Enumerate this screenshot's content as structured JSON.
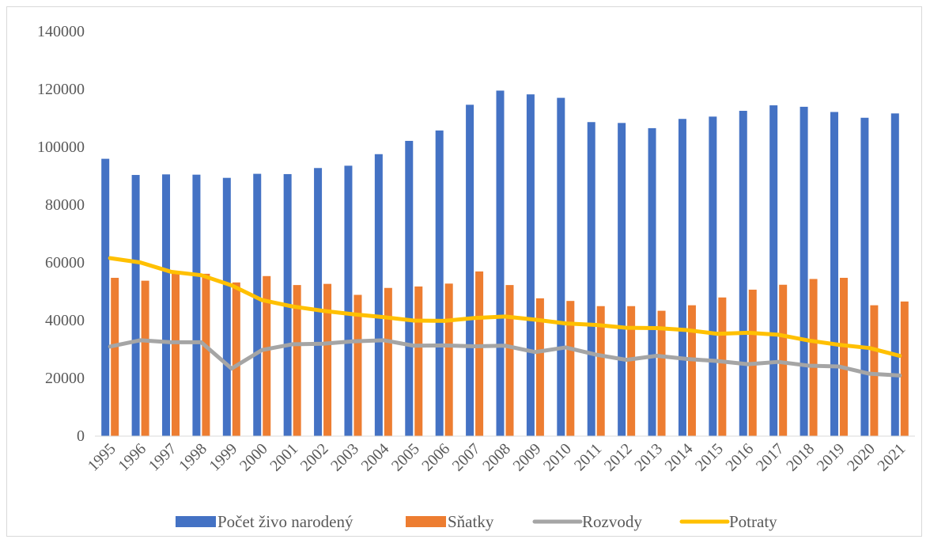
{
  "chart_data": {
    "type": "bar",
    "title": "",
    "xlabel": "",
    "ylabel": "",
    "ylim": [
      0,
      140000
    ],
    "yticks": [
      0,
      20000,
      40000,
      60000,
      80000,
      100000,
      120000,
      140000
    ],
    "grid": false,
    "legend_position": "bottom",
    "categories": [
      "1995",
      "1996",
      "1997",
      "1998",
      "1999",
      "2000",
      "2001",
      "2002",
      "2003",
      "2004",
      "2005",
      "2006",
      "2007",
      "2008",
      "2009",
      "2010",
      "2011",
      "2012",
      "2013",
      "2014",
      "2015",
      "2016",
      "2017",
      "2018",
      "2019",
      "2020",
      "2021"
    ],
    "series": [
      {
        "name": "Počet živo narodený",
        "type": "bar",
        "color": "#4472C4",
        "values": [
          96000,
          90400,
          90600,
          90500,
          89400,
          90800,
          90700,
          92800,
          93600,
          97600,
          102200,
          105800,
          114700,
          119600,
          118300,
          117100,
          108700,
          108400,
          106600,
          109800,
          110600,
          112600,
          114500,
          114000,
          112200,
          110200,
          111700
        ]
      },
      {
        "name": "Sňatky",
        "type": "bar",
        "color": "#ED7D31",
        "values": [
          54800,
          53800,
          56900,
          56200,
          53200,
          55400,
          52300,
          52700,
          48900,
          51300,
          51800,
          52800,
          57000,
          52300,
          47700,
          46800,
          45000,
          45000,
          43400,
          45300,
          48000,
          50700,
          52400,
          54400,
          54800,
          45300,
          46600
        ]
      },
      {
        "name": "Rozvody",
        "type": "line",
        "color": "#A5A5A5",
        "values": [
          31000,
          33200,
          32500,
          32500,
          23400,
          29800,
          31800,
          32000,
          32800,
          33200,
          31300,
          31400,
          31100,
          31300,
          29100,
          30700,
          28200,
          26400,
          27800,
          26700,
          26000,
          24900,
          25700,
          24400,
          24100,
          21600,
          21000
        ]
      },
      {
        "name": "Potraty",
        "type": "line",
        "color": "#FFC000",
        "values": [
          61600,
          60100,
          56900,
          55700,
          52200,
          47100,
          44900,
          43400,
          42200,
          41200,
          40000,
          39900,
          40900,
          41400,
          40300,
          39000,
          38500,
          37500,
          37400,
          36700,
          35400,
          35800,
          35100,
          33100,
          31600,
          30500,
          27800
        ]
      }
    ]
  }
}
